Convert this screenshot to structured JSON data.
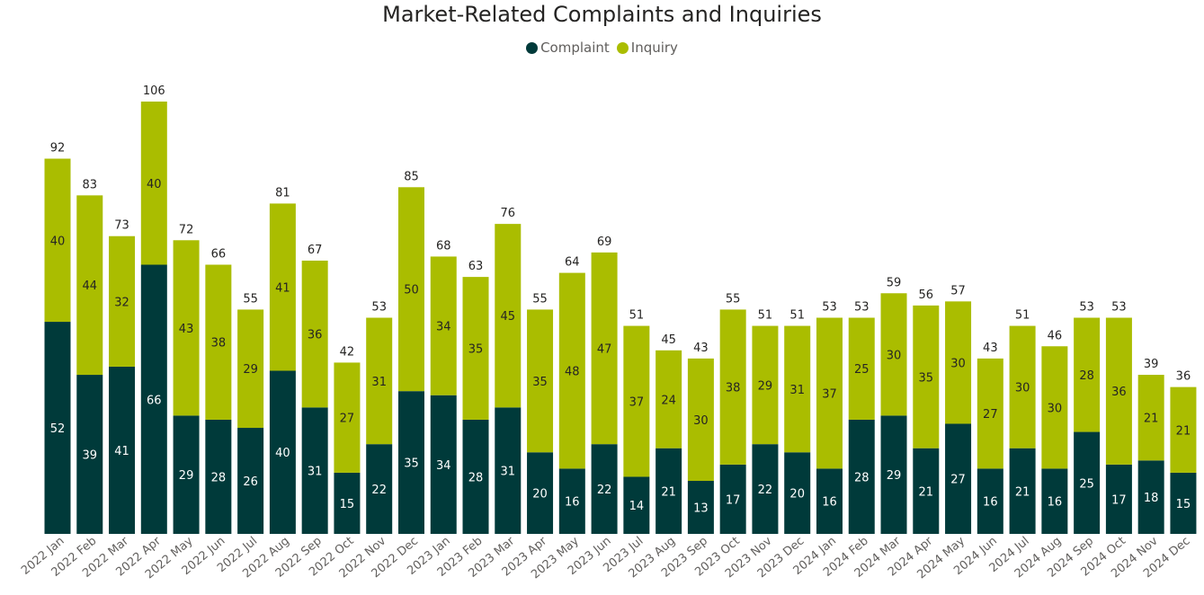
{
  "chart_data": {
    "type": "bar",
    "stacked": true,
    "title": "Market-Related Complaints and Inquiries",
    "legend_position": "top-center",
    "grid": false,
    "ylim": [
      0,
      106
    ],
    "categories": [
      "2022 Jan",
      "2022 Feb",
      "2022 Mar",
      "2022 Apr",
      "2022 May",
      "2022 Jun",
      "2022 Jul",
      "2022 Aug",
      "2022 Sep",
      "2022 Oct",
      "2022 Nov",
      "2022 Dec",
      "2023 Jan",
      "2023 Feb",
      "2023 Mar",
      "2023 Apr",
      "2023 May",
      "2023 Jun",
      "2023 Jul",
      "2023 Aug",
      "2023 Sep",
      "2023 Oct",
      "2023 Nov",
      "2023 Dec",
      "2024 Jan",
      "2024 Feb",
      "2024 Mar",
      "2024 Apr",
      "2024 May",
      "2024 Jun",
      "2024 Jul",
      "2024 Aug",
      "2024 Sep",
      "2024 Oct",
      "2024 Nov",
      "2024 Dec"
    ],
    "series": [
      {
        "name": "Complaint",
        "color": "#003a3a",
        "label_color": "#ffffff",
        "values": [
          52,
          39,
          41,
          66,
          29,
          28,
          26,
          40,
          31,
          15,
          22,
          35,
          34,
          28,
          31,
          20,
          16,
          22,
          14,
          21,
          13,
          17,
          22,
          20,
          16,
          28,
          29,
          21,
          27,
          16,
          21,
          16,
          25,
          17,
          18,
          15
        ]
      },
      {
        "name": "Inquiry",
        "color": "#aabd00",
        "label_color": "#252423",
        "values": [
          40,
          44,
          32,
          40,
          43,
          38,
          29,
          41,
          36,
          27,
          31,
          50,
          34,
          35,
          45,
          35,
          48,
          47,
          37,
          24,
          30,
          38,
          29,
          31,
          37,
          25,
          30,
          35,
          30,
          27,
          30,
          30,
          28,
          36,
          21,
          21
        ]
      }
    ],
    "totals": [
      92,
      83,
      73,
      106,
      72,
      66,
      55,
      81,
      67,
      42,
      53,
      85,
      68,
      63,
      76,
      55,
      64,
      69,
      51,
      45,
      43,
      55,
      51,
      51,
      53,
      53,
      59,
      56,
      57,
      43,
      51,
      46,
      53,
      53,
      39,
      36
    ]
  }
}
